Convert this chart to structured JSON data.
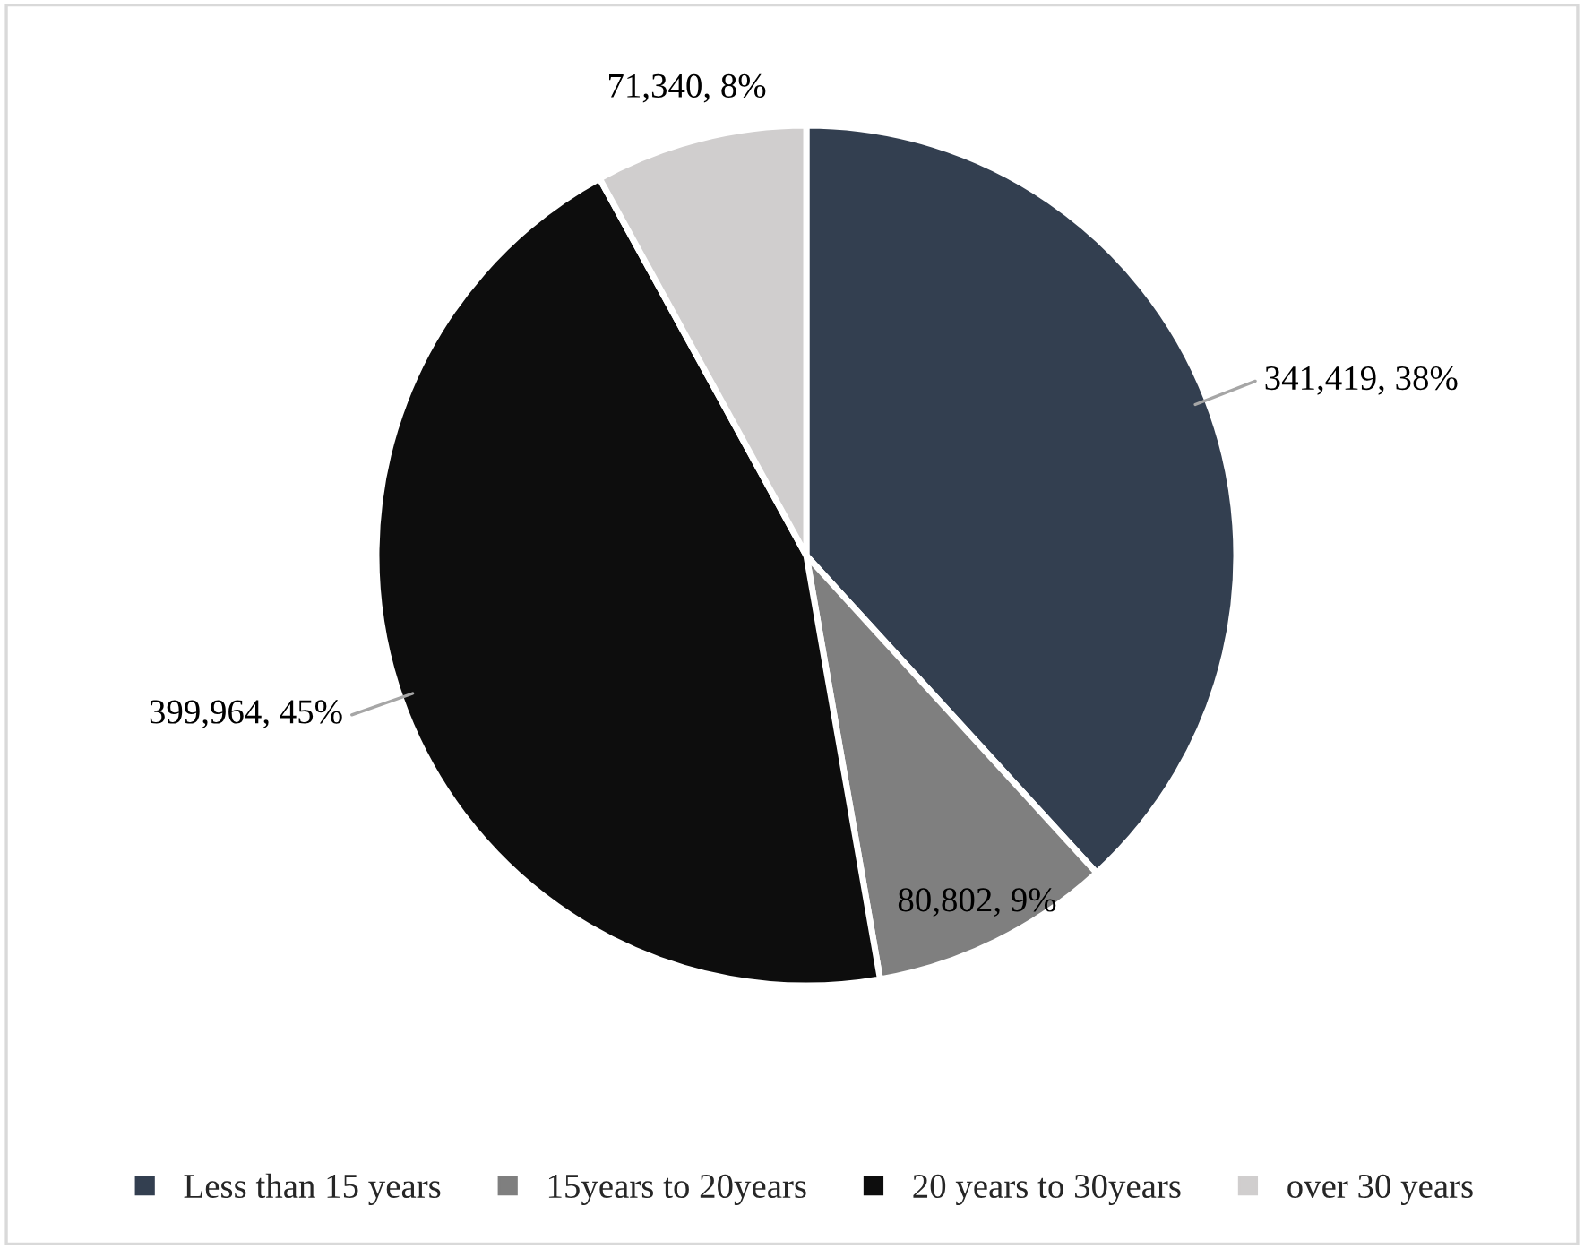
{
  "chart_data": {
    "type": "pie",
    "categories": [
      "Less than 15 years",
      "15years to 20years",
      "20 years to 30years",
      "over 30 years"
    ],
    "values": [
      341419,
      80802,
      399964,
      71340
    ],
    "colors": [
      "#333f50",
      "#7f7f7f",
      "#0d0d0d",
      "#d0cece"
    ],
    "value_labels": [
      "341,419, 38%",
      "80,802, 9%",
      "399,964, 45%",
      "71,340, 8%"
    ],
    "legend": "bottom"
  }
}
